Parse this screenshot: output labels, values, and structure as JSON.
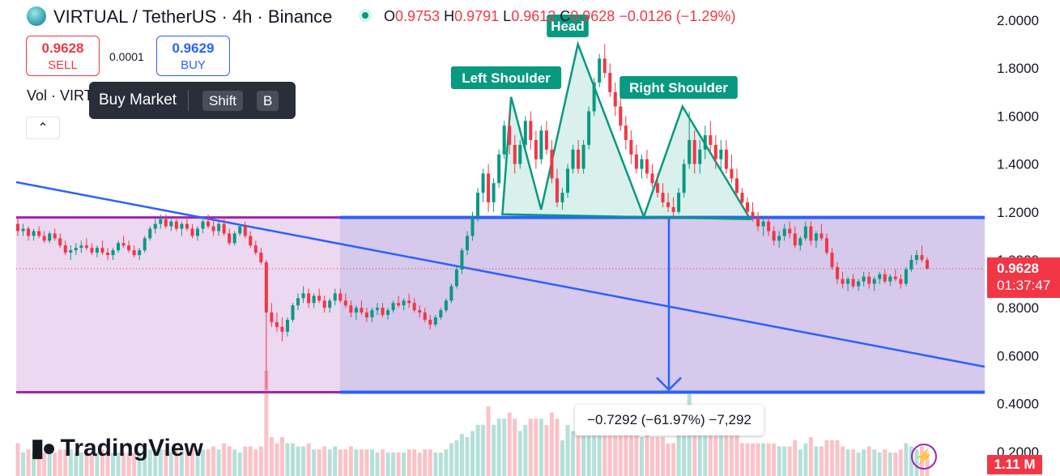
{
  "header": {
    "title": "VIRTUAL / TetherUS · 4h · Binance",
    "ohlc": {
      "o_label": "O",
      "o": "0.9753",
      "h_label": "H",
      "h": "0.9791",
      "l_label": "L",
      "l": "0.9612",
      "c_label": "C",
      "c": "0.9628",
      "change": "−0.0126 (−1.29%)"
    }
  },
  "trade": {
    "sell_price": "0.9628",
    "sell_label": "SELL",
    "spread": "0.0001",
    "buy_price": "0.9629",
    "buy_label": "BUY"
  },
  "tooltip": {
    "text": "Buy Market",
    "key1": "Shift",
    "key2": "B"
  },
  "volume_legend": "Vol · VIRT",
  "brand": "TradingView",
  "measure_label": "−0.7292 (−61.97%) −7,292",
  "price_axis": {
    "current_price": "0.9628",
    "countdown": "01:37:47",
    "volume_value": "1.11 M"
  },
  "colors": {
    "up": "#089981",
    "down": "#f23645",
    "pattern": "#089981",
    "range_box": "#7e57c2",
    "trendline": "#2962ff",
    "left_zone": "#e1bee7"
  },
  "chart_data": {
    "type": "candlestick",
    "symbol": "VIRTUAL / TetherUS",
    "timeframe": "4h",
    "exchange": "Binance",
    "y_axis": {
      "ticks": [
        2.0,
        1.8,
        1.6,
        1.4,
        1.2,
        1.0,
        0.8,
        0.6,
        0.4,
        0.2
      ],
      "tick_labels": [
        "2.0000",
        "1.8000",
        "1.6000",
        "1.4000",
        "1.2000",
        "1.0000",
        "0.8000",
        "0.6000",
        "0.4000",
        "0.2000"
      ],
      "range": [
        0.2,
        2.05
      ]
    },
    "last_price": 0.9628,
    "range_levels": {
      "top": 1.1768,
      "bottom": 0.4476
    },
    "measured_move": {
      "from": 1.1768,
      "to": 0.4476,
      "change": "−0.7292",
      "percent": "−61.97%",
      "ticks": "−7,292"
    },
    "pattern": {
      "name": "Head and Shoulders",
      "labels": [
        "Left Shoulder",
        "Head",
        "Right Shoulder"
      ],
      "points": [
        {
          "t": 0.502,
          "price": 1.19
        },
        {
          "t": 0.511,
          "price": 1.68,
          "label": "Left Shoulder"
        },
        {
          "t": 0.542,
          "price": 1.21
        },
        {
          "t": 0.58,
          "price": 1.9,
          "label": "Head"
        },
        {
          "t": 0.648,
          "price": 1.18
        },
        {
          "t": 0.688,
          "price": 1.64,
          "label": "Right Shoulder"
        },
        {
          "t": 0.758,
          "price": 1.17
        }
      ]
    },
    "candles": [
      [
        1.15,
        1.18,
        1.1,
        1.12
      ],
      [
        1.12,
        1.15,
        1.1,
        1.13
      ],
      [
        1.13,
        1.14,
        1.08,
        1.1
      ],
      [
        1.1,
        1.13,
        1.08,
        1.12
      ],
      [
        1.12,
        1.14,
        1.09,
        1.1
      ],
      [
        1.1,
        1.12,
        1.07,
        1.08
      ],
      [
        1.08,
        1.12,
        1.07,
        1.11
      ],
      [
        1.11,
        1.13,
        1.08,
        1.09
      ],
      [
        1.09,
        1.11,
        1.05,
        1.06
      ],
      [
        1.06,
        1.08,
        1.02,
        1.03
      ],
      [
        1.03,
        1.06,
        1.0,
        1.04
      ],
      [
        1.04,
        1.07,
        1.02,
        1.05
      ],
      [
        1.05,
        1.08,
        1.03,
        1.06
      ],
      [
        1.06,
        1.09,
        1.04,
        1.05
      ],
      [
        1.05,
        1.07,
        1.02,
        1.03
      ],
      [
        1.03,
        1.06,
        1.01,
        1.05
      ],
      [
        1.05,
        1.08,
        1.02,
        1.03
      ],
      [
        1.03,
        1.05,
        1.0,
        1.02
      ],
      [
        1.02,
        1.05,
        1.0,
        1.04
      ],
      [
        1.04,
        1.08,
        1.03,
        1.07
      ],
      [
        1.07,
        1.1,
        1.05,
        1.06
      ],
      [
        1.06,
        1.08,
        1.03,
        1.04
      ],
      [
        1.04,
        1.06,
        1.01,
        1.02
      ],
      [
        1.02,
        1.05,
        1.0,
        1.04
      ],
      [
        1.04,
        1.1,
        1.03,
        1.09
      ],
      [
        1.09,
        1.14,
        1.08,
        1.13
      ],
      [
        1.13,
        1.17,
        1.11,
        1.15
      ],
      [
        1.15,
        1.19,
        1.13,
        1.17
      ],
      [
        1.17,
        1.19,
        1.13,
        1.14
      ],
      [
        1.14,
        1.17,
        1.12,
        1.16
      ],
      [
        1.16,
        1.18,
        1.12,
        1.13
      ],
      [
        1.13,
        1.16,
        1.1,
        1.15
      ],
      [
        1.15,
        1.18,
        1.12,
        1.13
      ],
      [
        1.13,
        1.15,
        1.09,
        1.1
      ],
      [
        1.1,
        1.14,
        1.08,
        1.13
      ],
      [
        1.13,
        1.17,
        1.11,
        1.16
      ],
      [
        1.16,
        1.19,
        1.13,
        1.14
      ],
      [
        1.14,
        1.17,
        1.1,
        1.12
      ],
      [
        1.12,
        1.16,
        1.1,
        1.15
      ],
      [
        1.15,
        1.18,
        1.1,
        1.11
      ],
      [
        1.11,
        1.13,
        1.06,
        1.07
      ],
      [
        1.07,
        1.12,
        1.06,
        1.11
      ],
      [
        1.11,
        1.15,
        1.1,
        1.14
      ],
      [
        1.14,
        1.16,
        1.09,
        1.1
      ],
      [
        1.1,
        1.12,
        1.05,
        1.06
      ],
      [
        1.06,
        1.08,
        1.02,
        1.03
      ],
      [
        1.03,
        1.05,
        0.98,
        0.99
      ],
      [
        0.99,
        1.0,
        0.46,
        0.78
      ],
      [
        0.78,
        0.82,
        0.72,
        0.74
      ],
      [
        0.74,
        0.78,
        0.7,
        0.72
      ],
      [
        0.72,
        0.76,
        0.66,
        0.7
      ],
      [
        0.7,
        0.76,
        0.68,
        0.75
      ],
      [
        0.75,
        0.82,
        0.74,
        0.81
      ],
      [
        0.81,
        0.86,
        0.79,
        0.84
      ],
      [
        0.84,
        0.89,
        0.82,
        0.86
      ],
      [
        0.86,
        0.88,
        0.8,
        0.82
      ],
      [
        0.82,
        0.86,
        0.8,
        0.85
      ],
      [
        0.85,
        0.88,
        0.82,
        0.83
      ],
      [
        0.83,
        0.85,
        0.78,
        0.8
      ],
      [
        0.8,
        0.84,
        0.78,
        0.83
      ],
      [
        0.83,
        0.88,
        0.81,
        0.86
      ],
      [
        0.86,
        0.88,
        0.82,
        0.83
      ],
      [
        0.83,
        0.86,
        0.8,
        0.81
      ],
      [
        0.81,
        0.83,
        0.76,
        0.78
      ],
      [
        0.78,
        0.81,
        0.75,
        0.8
      ],
      [
        0.8,
        0.83,
        0.77,
        0.78
      ],
      [
        0.78,
        0.8,
        0.74,
        0.76
      ],
      [
        0.76,
        0.8,
        0.74,
        0.79
      ],
      [
        0.79,
        0.82,
        0.77,
        0.8
      ],
      [
        0.8,
        0.82,
        0.76,
        0.77
      ],
      [
        0.77,
        0.8,
        0.75,
        0.79
      ],
      [
        0.79,
        0.83,
        0.78,
        0.82
      ],
      [
        0.82,
        0.85,
        0.8,
        0.81
      ],
      [
        0.81,
        0.84,
        0.79,
        0.83
      ],
      [
        0.83,
        0.86,
        0.8,
        0.82
      ],
      [
        0.82,
        0.84,
        0.78,
        0.79
      ],
      [
        0.79,
        0.81,
        0.76,
        0.78
      ],
      [
        0.78,
        0.8,
        0.74,
        0.75
      ],
      [
        0.75,
        0.77,
        0.71,
        0.73
      ],
      [
        0.73,
        0.77,
        0.72,
        0.76
      ],
      [
        0.76,
        0.8,
        0.75,
        0.79
      ],
      [
        0.79,
        0.84,
        0.78,
        0.83
      ],
      [
        0.83,
        0.9,
        0.82,
        0.89
      ],
      [
        0.89,
        0.97,
        0.88,
        0.96
      ],
      [
        0.96,
        1.05,
        0.94,
        1.04
      ],
      [
        1.04,
        1.12,
        1.02,
        1.1
      ],
      [
        1.1,
        1.2,
        1.08,
        1.18
      ],
      [
        1.18,
        1.3,
        1.16,
        1.28
      ],
      [
        1.28,
        1.38,
        1.24,
        1.36
      ],
      [
        1.36,
        1.4,
        1.2,
        1.24
      ],
      [
        1.24,
        1.34,
        1.2,
        1.32
      ],
      [
        1.32,
        1.46,
        1.3,
        1.44
      ],
      [
        1.44,
        1.58,
        1.42,
        1.56
      ],
      [
        1.56,
        1.62,
        1.44,
        1.48
      ],
      [
        1.48,
        1.52,
        1.36,
        1.4
      ],
      [
        1.4,
        1.5,
        1.38,
        1.48
      ],
      [
        1.48,
        1.6,
        1.46,
        1.58
      ],
      [
        1.58,
        1.62,
        1.46,
        1.5
      ],
      [
        1.5,
        1.54,
        1.38,
        1.42
      ],
      [
        1.42,
        1.56,
        1.4,
        1.54
      ],
      [
        1.54,
        1.58,
        1.44,
        1.46
      ],
      [
        1.46,
        1.5,
        1.32,
        1.34
      ],
      [
        1.34,
        1.38,
        1.22,
        1.24
      ],
      [
        1.24,
        1.3,
        1.21,
        1.28
      ],
      [
        1.28,
        1.4,
        1.26,
        1.38
      ],
      [
        1.38,
        1.48,
        1.36,
        1.46
      ],
      [
        1.46,
        1.5,
        1.36,
        1.38
      ],
      [
        1.38,
        1.5,
        1.36,
        1.48
      ],
      [
        1.48,
        1.64,
        1.46,
        1.62
      ],
      [
        1.62,
        1.76,
        1.6,
        1.74
      ],
      [
        1.74,
        1.86,
        1.72,
        1.84
      ],
      [
        1.84,
        1.9,
        1.76,
        1.78
      ],
      [
        1.78,
        1.82,
        1.68,
        1.7
      ],
      [
        1.7,
        1.74,
        1.6,
        1.64
      ],
      [
        1.64,
        1.68,
        1.54,
        1.56
      ],
      [
        1.56,
        1.6,
        1.46,
        1.5
      ],
      [
        1.5,
        1.54,
        1.4,
        1.44
      ],
      [
        1.44,
        1.48,
        1.36,
        1.38
      ],
      [
        1.38,
        1.44,
        1.34,
        1.42
      ],
      [
        1.42,
        1.46,
        1.34,
        1.36
      ],
      [
        1.36,
        1.4,
        1.3,
        1.32
      ],
      [
        1.32,
        1.36,
        1.26,
        1.28
      ],
      [
        1.28,
        1.32,
        1.22,
        1.24
      ],
      [
        1.24,
        1.28,
        1.2,
        1.22
      ],
      [
        1.22,
        1.26,
        1.18,
        1.2
      ],
      [
        1.2,
        1.3,
        1.19,
        1.28
      ],
      [
        1.28,
        1.42,
        1.26,
        1.4
      ],
      [
        1.4,
        1.62,
        1.38,
        1.5
      ],
      [
        1.5,
        1.54,
        1.36,
        1.4
      ],
      [
        1.4,
        1.5,
        1.36,
        1.46
      ],
      [
        1.46,
        1.56,
        1.42,
        1.52
      ],
      [
        1.52,
        1.58,
        1.44,
        1.48
      ],
      [
        1.48,
        1.52,
        1.38,
        1.42
      ],
      [
        1.42,
        1.5,
        1.38,
        1.46
      ],
      [
        1.46,
        1.5,
        1.36,
        1.38
      ],
      [
        1.38,
        1.44,
        1.32,
        1.34
      ],
      [
        1.34,
        1.38,
        1.26,
        1.28
      ],
      [
        1.28,
        1.3,
        1.22,
        1.24
      ],
      [
        1.24,
        1.26,
        1.18,
        1.2
      ],
      [
        1.2,
        1.24,
        1.16,
        1.18
      ],
      [
        1.18,
        1.2,
        1.12,
        1.14
      ],
      [
        1.14,
        1.18,
        1.1,
        1.16
      ],
      [
        1.16,
        1.18,
        1.1,
        1.12
      ],
      [
        1.12,
        1.14,
        1.06,
        1.08
      ],
      [
        1.08,
        1.12,
        1.05,
        1.1
      ],
      [
        1.1,
        1.15,
        1.08,
        1.13
      ],
      [
        1.13,
        1.16,
        1.09,
        1.11
      ],
      [
        1.11,
        1.14,
        1.05,
        1.06
      ],
      [
        1.06,
        1.1,
        1.04,
        1.09
      ],
      [
        1.09,
        1.16,
        1.08,
        1.14
      ],
      [
        1.14,
        1.16,
        1.06,
        1.08
      ],
      [
        1.08,
        1.12,
        1.05,
        1.11
      ],
      [
        1.11,
        1.15,
        1.08,
        1.09
      ],
      [
        1.09,
        1.11,
        1.02,
        1.03
      ],
      [
        1.03,
        1.05,
        0.96,
        0.97
      ],
      [
        0.97,
        0.99,
        0.9,
        0.92
      ],
      [
        0.92,
        0.95,
        0.88,
        0.9
      ],
      [
        0.9,
        0.93,
        0.87,
        0.92
      ],
      [
        0.92,
        0.94,
        0.88,
        0.89
      ],
      [
        0.89,
        0.92,
        0.87,
        0.91
      ],
      [
        0.91,
        0.95,
        0.89,
        0.93
      ],
      [
        0.93,
        0.95,
        0.88,
        0.9
      ],
      [
        0.9,
        0.93,
        0.87,
        0.92
      ],
      [
        0.92,
        0.95,
        0.9,
        0.94
      ],
      [
        0.94,
        0.96,
        0.9,
        0.91
      ],
      [
        0.91,
        0.94,
        0.89,
        0.93
      ],
      [
        0.93,
        0.96,
        0.91,
        0.92
      ],
      [
        0.92,
        0.94,
        0.88,
        0.9
      ],
      [
        0.9,
        0.97,
        0.89,
        0.96
      ],
      [
        0.96,
        1.02,
        0.95,
        1.0
      ],
      [
        1.0,
        1.04,
        0.98,
        1.02
      ],
      [
        1.02,
        1.06,
        0.99,
        1.0
      ],
      [
        1.0,
        1.01,
        0.96,
        0.9628
      ]
    ]
  }
}
